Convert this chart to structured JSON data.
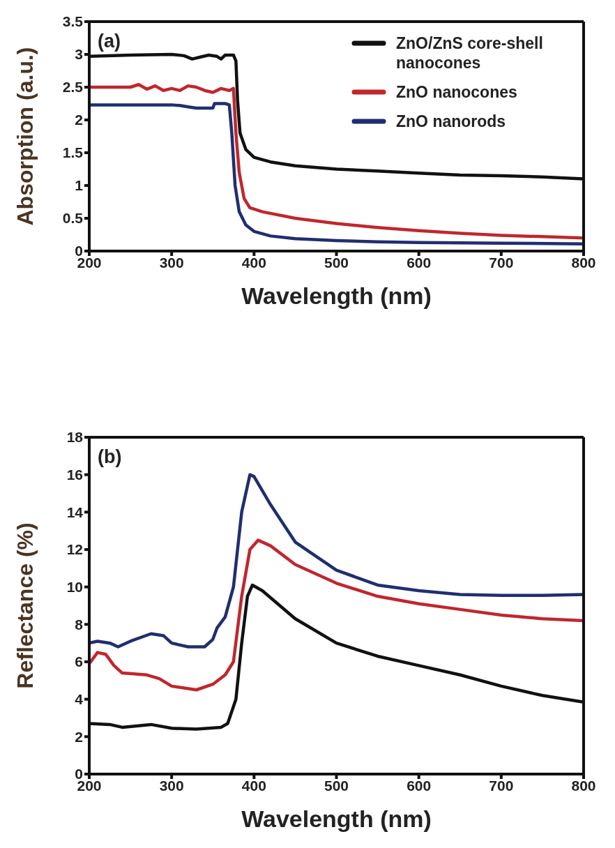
{
  "chart_data": [
    {
      "type": "line",
      "annotations": [
        "(a)"
      ],
      "xlabel": "Wavelength (nm)",
      "ylabel": "Absorption (a.u.)",
      "xlim": [
        200,
        800
      ],
      "xticks": [
        200,
        300,
        400,
        500,
        600,
        700,
        800
      ],
      "ylim": [
        0,
        3.5
      ],
      "yticks": [
        0,
        0.5,
        1,
        1.5,
        2,
        2.5,
        3,
        3.5
      ],
      "legend": "top right",
      "marker": "none",
      "line_style": "solid",
      "series": [
        {
          "name": "ZnO/ZnS core-shell nanocones",
          "color": "#111111",
          "x": [
            200,
            250,
            300,
            315,
            325,
            335,
            345,
            355,
            360,
            365,
            375,
            378,
            380,
            383,
            390,
            400,
            420,
            450,
            500,
            550,
            600,
            650,
            700,
            750,
            800
          ],
          "values": [
            2.97,
            2.99,
            3.0,
            2.98,
            2.93,
            2.96,
            2.99,
            2.97,
            2.93,
            2.99,
            2.99,
            2.9,
            2.3,
            1.8,
            1.55,
            1.43,
            1.36,
            1.3,
            1.25,
            1.22,
            1.19,
            1.16,
            1.15,
            1.13,
            1.1
          ]
        },
        {
          "name": "ZnO nanocones",
          "color": "#c0272d",
          "x": [
            200,
            250,
            260,
            270,
            280,
            290,
            300,
            310,
            320,
            330,
            340,
            350,
            360,
            370,
            375,
            378,
            382,
            388,
            395,
            410,
            450,
            500,
            550,
            600,
            650,
            700,
            750,
            800
          ],
          "values": [
            2.5,
            2.5,
            2.54,
            2.47,
            2.52,
            2.45,
            2.48,
            2.45,
            2.52,
            2.5,
            2.45,
            2.42,
            2.48,
            2.45,
            2.48,
            1.8,
            1.2,
            0.8,
            0.66,
            0.6,
            0.5,
            0.42,
            0.36,
            0.31,
            0.27,
            0.24,
            0.22,
            0.2
          ]
        },
        {
          "name": "ZnO nanorods",
          "color": "#1f2f6e",
          "x": [
            200,
            300,
            310,
            320,
            330,
            350,
            352,
            365,
            370,
            373,
            377,
            382,
            390,
            400,
            420,
            450,
            500,
            550,
            600,
            700,
            800
          ],
          "values": [
            2.23,
            2.23,
            2.22,
            2.2,
            2.18,
            2.18,
            2.25,
            2.25,
            2.23,
            1.8,
            1.0,
            0.6,
            0.4,
            0.3,
            0.23,
            0.19,
            0.16,
            0.14,
            0.13,
            0.12,
            0.11
          ]
        }
      ]
    },
    {
      "type": "line",
      "annotations": [
        "(b)"
      ],
      "xlabel": "Wavelength (nm)",
      "ylabel": "Reflectance (%)",
      "xlim": [
        200,
        800
      ],
      "xticks": [
        200,
        300,
        400,
        500,
        600,
        700,
        800
      ],
      "ylim": [
        0,
        18
      ],
      "yticks": [
        0,
        2,
        4,
        6,
        8,
        10,
        12,
        14,
        16,
        18
      ],
      "marker": "none",
      "line_style": "solid",
      "series": [
        {
          "color": "#111111",
          "x": [
            200,
            225,
            240,
            275,
            300,
            330,
            360,
            368,
            378,
            385,
            392,
            398,
            410,
            450,
            500,
            550,
            600,
            650,
            700,
            750,
            800
          ],
          "values": [
            2.7,
            2.65,
            2.5,
            2.65,
            2.45,
            2.4,
            2.5,
            2.7,
            4,
            7,
            9.5,
            10.1,
            9.8,
            8.3,
            7.0,
            6.3,
            5.8,
            5.3,
            4.7,
            4.2,
            3.85
          ]
        },
        {
          "color": "#c0272d",
          "x": [
            200,
            210,
            220,
            230,
            240,
            270,
            285,
            300,
            330,
            350,
            365,
            375,
            385,
            395,
            405,
            420,
            450,
            500,
            550,
            600,
            650,
            700,
            750,
            800
          ],
          "values": [
            5.9,
            6.5,
            6.4,
            5.8,
            5.4,
            5.3,
            5.1,
            4.7,
            4.5,
            4.8,
            5.3,
            6.0,
            9.5,
            12,
            12.5,
            12.2,
            11.2,
            10.2,
            9.5,
            9.1,
            8.8,
            8.5,
            8.3,
            8.2
          ]
        },
        {
          "color": "#1f2f6e",
          "x": [
            200,
            210,
            225,
            235,
            250,
            275,
            290,
            300,
            320,
            340,
            350,
            355,
            365,
            375,
            385,
            395,
            400,
            420,
            450,
            500,
            550,
            600,
            650,
            700,
            750,
            800
          ],
          "values": [
            7.0,
            7.1,
            7.0,
            6.8,
            7.1,
            7.5,
            7.4,
            7.0,
            6.8,
            6.8,
            7.2,
            7.8,
            8.4,
            10,
            14,
            16,
            15.9,
            14.4,
            12.4,
            10.9,
            10.1,
            9.8,
            9.6,
            9.55,
            9.55,
            9.6
          ]
        }
      ]
    }
  ]
}
